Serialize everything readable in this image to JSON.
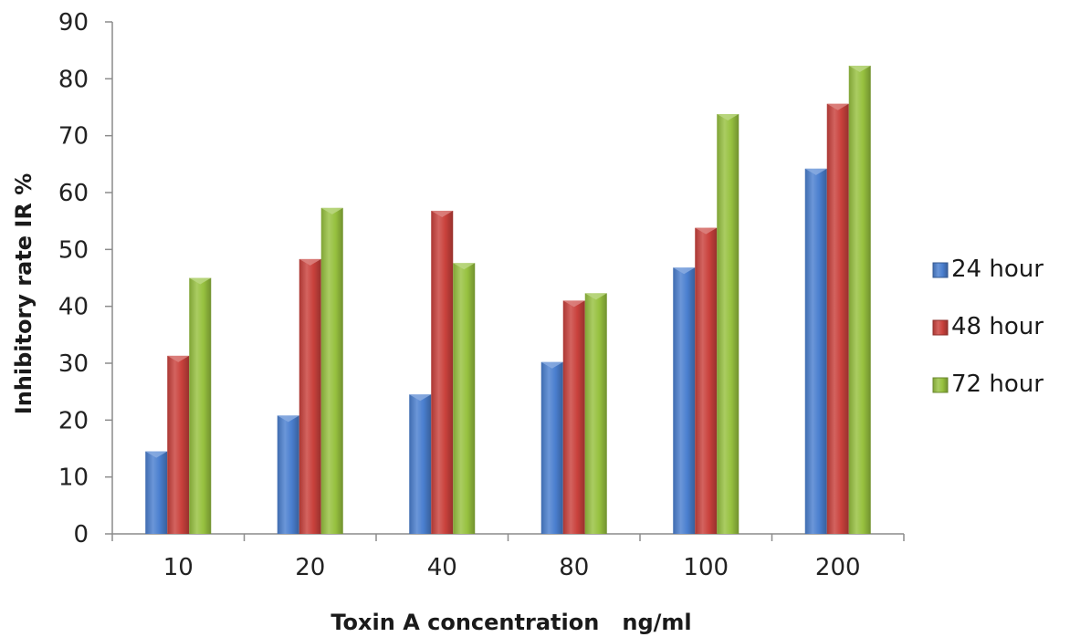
{
  "chart_data": {
    "type": "bar",
    "title": "",
    "xlabel": "Toxin A concentration   ng/ml",
    "ylabel": "Inhibitory rate IR %",
    "categories": [
      "10",
      "20",
      "40",
      "80",
      "100",
      "200"
    ],
    "ylim": [
      0,
      90
    ],
    "yticks": [
      0,
      10,
      20,
      30,
      40,
      50,
      60,
      70,
      80,
      90
    ],
    "grid": false,
    "legend_position": "right",
    "series": [
      {
        "name": "24 hour",
        "color": "#4a7fcf",
        "values": [
          14.5,
          20.8,
          24.5,
          30.2,
          46.8,
          64.2
        ]
      },
      {
        "name": "48 hour",
        "color": "#c9413c",
        "values": [
          31.3,
          48.3,
          56.8,
          41.0,
          53.8,
          75.6
        ]
      },
      {
        "name": "72 hour",
        "color": "#97c13f",
        "values": [
          45.0,
          57.3,
          47.6,
          42.3,
          73.8,
          82.3
        ]
      }
    ]
  }
}
